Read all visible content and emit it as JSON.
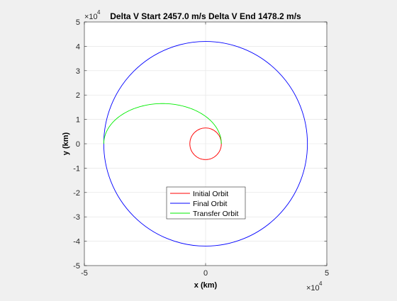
{
  "window": {
    "background": "#f0f0f0"
  },
  "chart_data": {
    "type": "line",
    "title": "Delta V Start 2457.0 m/s Delta V End 1478.2 m/s",
    "xlabel": "x (km)",
    "ylabel": "y (km)",
    "x_exponent": {
      "base": "×10",
      "power": "4"
    },
    "y_exponent": {
      "base": "×10",
      "power": "4"
    },
    "xlim": [
      -5,
      5
    ],
    "ylim": [
      -5,
      5
    ],
    "xticks": [
      -5,
      0,
      5
    ],
    "xtick_labels": [
      "-5",
      "0",
      "5"
    ],
    "yticks": [
      -5,
      -4,
      -3,
      -2,
      -1,
      0,
      1,
      2,
      3,
      4,
      5
    ],
    "ytick_labels": [
      "-5",
      "-4",
      "-3",
      "-2",
      "-1",
      "0",
      "1",
      "2",
      "3",
      "4",
      "5"
    ],
    "grid": true,
    "legend": {
      "location": "lower-center"
    },
    "series": [
      {
        "name": "Initial Orbit",
        "color": "#ff0000",
        "shape": "circle",
        "center": [
          0,
          0
        ],
        "radius": 0.65
      },
      {
        "name": "Final Orbit",
        "color": "#0000ff",
        "shape": "circle",
        "center": [
          0,
          0
        ],
        "radius": 4.2
      },
      {
        "name": "Transfer Orbit",
        "color": "#00ee00",
        "shape": "half-ellipse",
        "periapsis": [
          0.65,
          0
        ],
        "apoapsis": [
          -4.2,
          0
        ],
        "semi_minor": 1.65
      }
    ]
  }
}
